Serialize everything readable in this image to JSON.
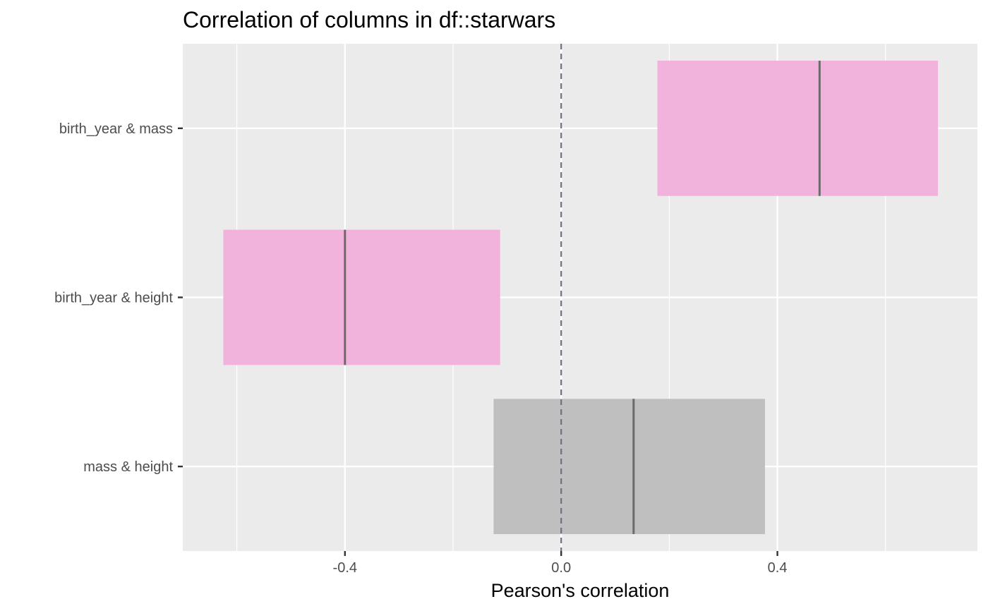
{
  "chart_data": {
    "type": "bar",
    "title": "Correlation of columns in df::starwars",
    "xlabel": "Pearson's correlation",
    "ylabel": "",
    "xlim": [
      -0.7,
      0.77
    ],
    "x_ticks": [
      -0.4,
      0.0,
      0.4
    ],
    "x_tick_labels": [
      "-0.4",
      "0.0",
      "0.4"
    ],
    "reference_line": 0.0,
    "grid": true,
    "categories": [
      "birth_year & mass",
      "birth_year & height",
      "mass & height"
    ],
    "estimate": [
      0.478,
      -0.4,
      0.134
    ],
    "ci_low": [
      0.178,
      -0.625,
      -0.125
    ],
    "ci_high": [
      0.697,
      -0.113,
      0.377
    ],
    "significant": [
      true,
      true,
      false
    ],
    "colors": {
      "significant": "#f1b2dc",
      "not_significant": "#bfbfbf",
      "panel": "#ebebeb",
      "grid": "#ffffff",
      "estimate_line": "#6b6b6b",
      "zero_line": "#6b7280"
    }
  }
}
